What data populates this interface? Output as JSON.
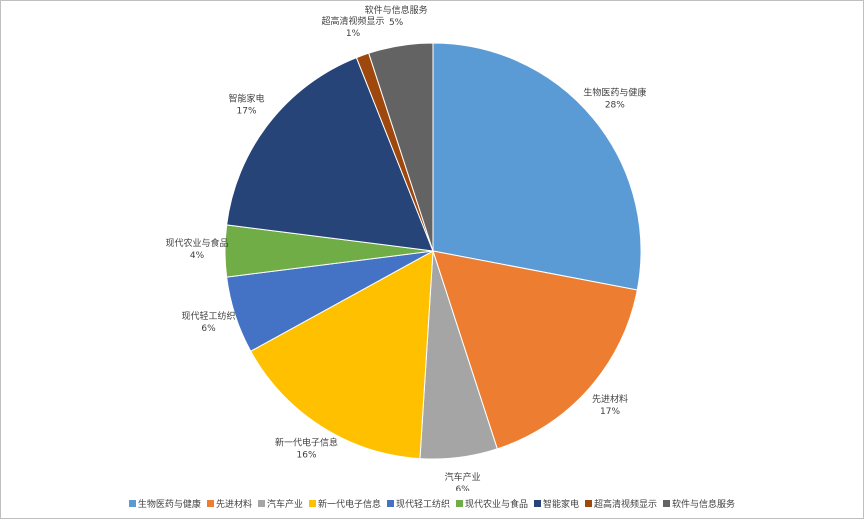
{
  "chart_data": {
    "type": "pie",
    "categories": [
      "生物医药与健康",
      "先进材料",
      "汽车产业",
      "新一代电子信息",
      "现代轻工纺织",
      "现代农业与食品",
      "智能家电",
      "超高清视频显示",
      "软件与信息服务"
    ],
    "values": [
      28,
      17,
      6,
      16,
      6,
      4,
      17,
      1,
      5
    ],
    "value_labels": [
      "28%",
      "17%",
      "6%",
      "16%",
      "6%",
      "4%",
      "17%",
      "1%",
      "5%"
    ],
    "colors": [
      "#5b9bd5",
      "#ed7d31",
      "#a5a5a5",
      "#ffc000",
      "#4472c4",
      "#70ad47",
      "#264478",
      "#9e480e",
      "#636363"
    ],
    "legend": "bottom"
  }
}
